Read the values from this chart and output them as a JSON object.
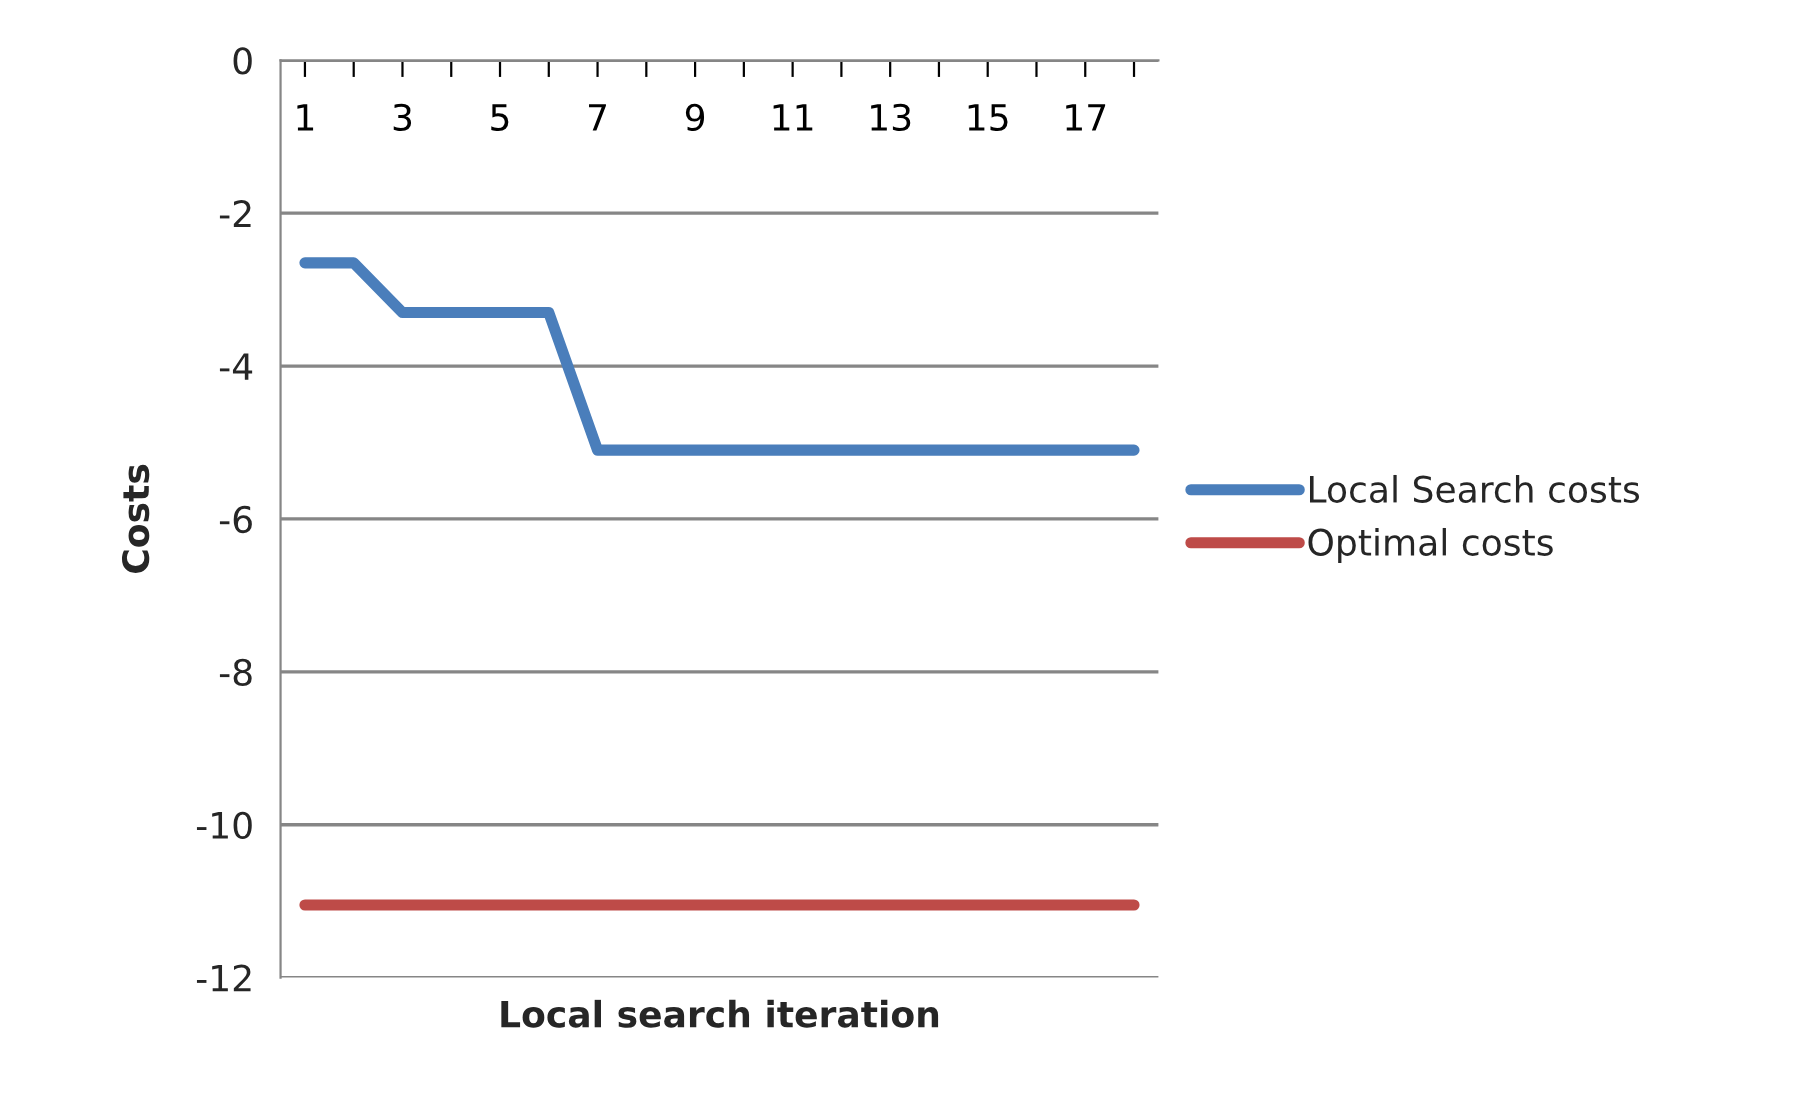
{
  "chart_data": {
    "type": "line",
    "xlabel": "Local search iteration",
    "ylabel": "Costs",
    "categories": [
      "1",
      null,
      "3",
      null,
      "5",
      null,
      "7",
      null,
      "9",
      null,
      "11",
      null,
      "13",
      null,
      "15",
      null,
      "17",
      null
    ],
    "series": [
      {
        "name": "Local Search costs",
        "color": "#4a7ebb",
        "values": [
          -2.65,
          -2.65,
          -3.3,
          -3.3,
          -3.3,
          -3.3,
          -5.1,
          -5.1,
          -5.1,
          -5.1,
          -5.1,
          -5.1,
          -5.1,
          -5.1,
          -5.1,
          -5.1,
          -5.1,
          -5.1
        ]
      },
      {
        "name": "Optimal costs",
        "color": "#be4b48",
        "values": [
          -11.05,
          -11.05,
          -11.05,
          -11.05,
          -11.05,
          -11.05,
          -11.05,
          -11.05,
          -11.05,
          -11.05,
          -11.05,
          -11.05,
          -11.05,
          -11.05,
          -11.05,
          -11.05,
          -11.05,
          -11.05
        ]
      }
    ],
    "ylim": [
      -12,
      0
    ],
    "yticks": [
      -12,
      -10,
      -8,
      -6,
      -4,
      -2,
      0
    ],
    "grid": "y",
    "legend": "right",
    "marker": "none",
    "line_style": "solid"
  }
}
